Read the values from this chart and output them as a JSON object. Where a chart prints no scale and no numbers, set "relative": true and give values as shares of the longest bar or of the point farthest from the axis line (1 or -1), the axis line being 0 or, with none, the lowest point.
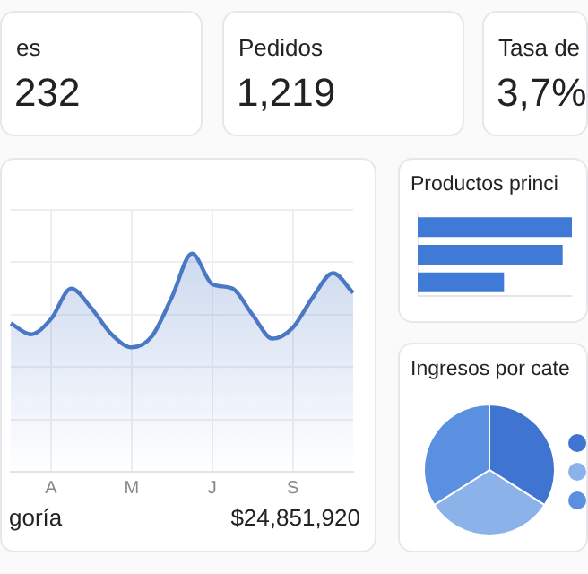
{
  "chart_data": [
    {
      "type": "other",
      "title": "es",
      "annotations": [
        "232"
      ]
    },
    {
      "type": "other",
      "title": "Pedidos",
      "annotations": [
        "1,219"
      ]
    },
    {
      "type": "other",
      "title": "Tasa de",
      "annotations": [
        "3,7%"
      ]
    },
    {
      "type": "area",
      "relative": true,
      "categories": [
        null,
        null,
        "A",
        null,
        null,
        null,
        "M",
        null,
        null,
        null,
        "J",
        null,
        null,
        null,
        "S",
        null,
        null,
        null
      ],
      "series": [
        {
          "color": "#4a78c4",
          "values": [
            0.68,
            0.63,
            0.7,
            0.84,
            0.75,
            0.63,
            0.57,
            0.62,
            0.8,
            1,
            0.86,
            0.84,
            0.72,
            0.61,
            0.66,
            0.8,
            0.91,
            0.82
          ]
        }
      ],
      "grid": true,
      "annotations": [
        "goría",
        "$24,851,920"
      ]
    },
    {
      "type": "bar",
      "orientation": "horizontal",
      "relative": true,
      "title": "Productos princi",
      "categories": [
        null,
        null,
        null
      ],
      "values": [
        1,
        0.94,
        0.56
      ],
      "color": "#3f7ad6"
    },
    {
      "type": "pie",
      "title": "Ingresos por cate",
      "categories": [
        null,
        null,
        null
      ],
      "values": [
        34,
        32,
        34
      ],
      "colors": [
        "#3f74d0",
        "#8cb2ea",
        "#5b8fe0"
      ]
    }
  ]
}
